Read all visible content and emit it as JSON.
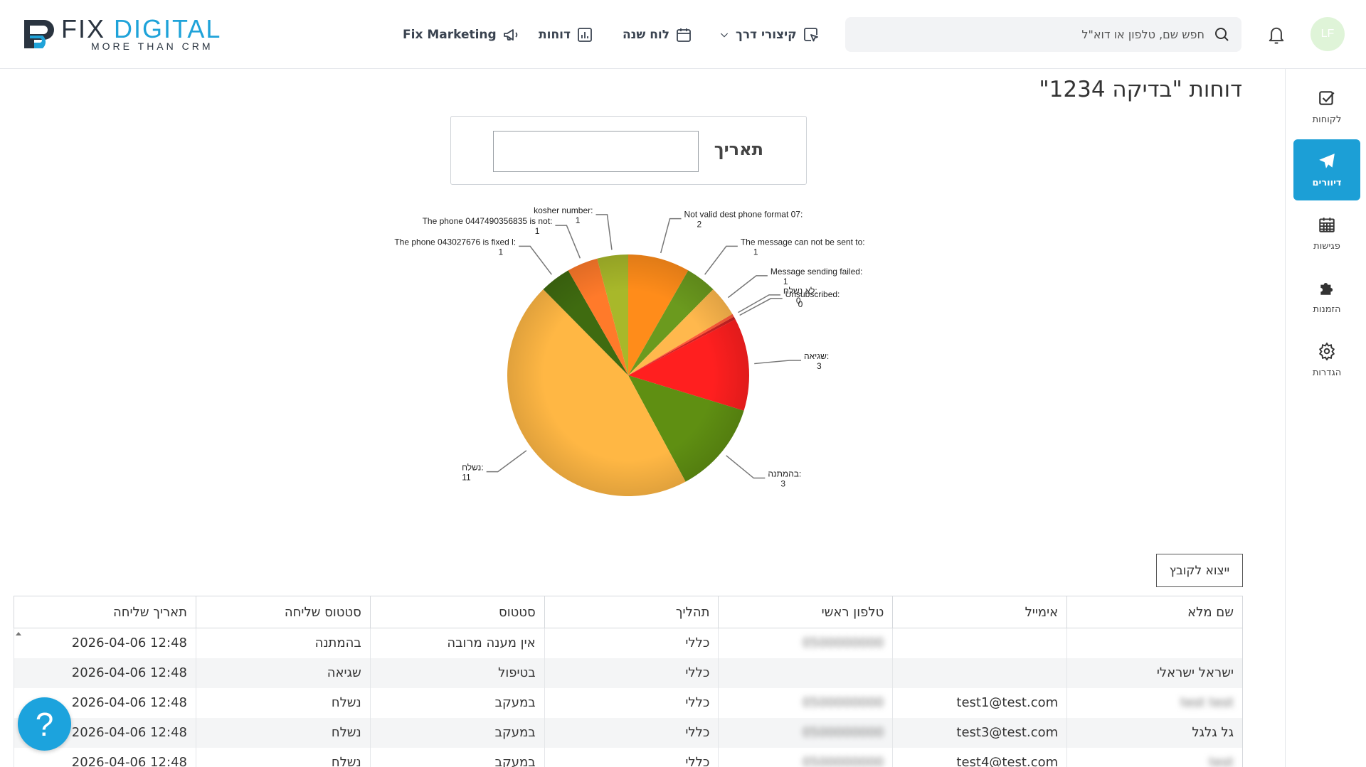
{
  "header": {
    "logo": {
      "word1": "FIX",
      "word2": "DIGITAL",
      "tagline": "MORE THAN CRM"
    },
    "nav": [
      {
        "label": "Fix Marketing",
        "icon": "megaphone-icon"
      },
      {
        "label": "דוחות",
        "icon": "bar-chart-icon"
      },
      {
        "label": "לוח שנה",
        "icon": "calendar-icon"
      },
      {
        "label": "קיצורי דרך",
        "icon": "cursor-click-icon"
      }
    ],
    "search": {
      "placeholder": "חפש שם, טלפון או דוא\"ל"
    },
    "avatar": "LF"
  },
  "sidebar": {
    "items": [
      {
        "label": "לקוחות",
        "icon": "check-square-icon",
        "active": false
      },
      {
        "label": "דיוורים",
        "icon": "paper-plane-icon",
        "active": true
      },
      {
        "label": "פגישות",
        "icon": "calendar-grid-icon",
        "active": false
      },
      {
        "label": "הזמנות",
        "icon": "puzzle-icon",
        "active": false
      },
      {
        "label": "הגדרות",
        "icon": "gear-icon",
        "active": false
      }
    ]
  },
  "page": {
    "title": "דוחות \"בדיקה 1234\"",
    "filter_label": "תאריך",
    "filter_value": "",
    "export_label": "ייצוא לקובץ"
  },
  "chart_data": {
    "type": "pie",
    "slices": [
      {
        "label": "Not valid dest phone format 07:",
        "value": 2,
        "color": "#ff8c1a"
      },
      {
        "label": "The message can not be sent to:",
        "value": 1,
        "color": "#6b9a1e"
      },
      {
        "label": "Message sending failed:",
        "value": 1,
        "color": "#ffb84d"
      },
      {
        "label": "לא נשלח:",
        "value": 0,
        "color": "#ff5a36"
      },
      {
        "label": "Unsubscribed:",
        "value": 0,
        "color": "#cc2222"
      },
      {
        "label": "שגיאה:",
        "value": 3,
        "color": "#ff1f1f"
      },
      {
        "label": "בהמתנה:",
        "value": 3,
        "color": "#5f8f12"
      },
      {
        "label": "נשלח:",
        "value": 11,
        "color": "#ffb744"
      },
      {
        "label": "The phone 043027676 is fixed l:",
        "value": 1,
        "color": "#3f6b10"
      },
      {
        "label": "The phone 0447490356835 is not:",
        "value": 1,
        "color": "#ff7a2a"
      },
      {
        "label": "kosher number:",
        "value": 1,
        "color": "#a8b82a"
      }
    ]
  },
  "table": {
    "columns": [
      "שם מלא",
      "אימייל",
      "טלפון ראשי",
      "תהליך",
      "סטטוס",
      "סטטוס שליחה",
      "תאריך שליחה"
    ],
    "rows": [
      [
        "",
        "",
        "0500000000",
        "כללי",
        "אין מענה מרובה",
        "בהמתנה",
        "2026-04-06 12:48"
      ],
      [
        "ישראל ישראלי",
        "",
        "",
        "כללי",
        "בטיפול",
        "שגיאה",
        "2026-04-06 12:48"
      ],
      [
        "test test",
        "test1@test.com",
        "0500000000",
        "כללי",
        "במעקב",
        "נשלח",
        "2026-04-06 12:48"
      ],
      [
        "גל גלגל",
        "test3@test.com",
        "0500000000",
        "כללי",
        "במעקב",
        "נשלח",
        "2026-04-06 12:48"
      ],
      [
        "test",
        "test4@test.com",
        "0500000000",
        "כללי",
        "במעקב",
        "נשלח",
        "2026-04-06 12:48"
      ]
    ],
    "blurred": [
      [
        false,
        false,
        true,
        false,
        false,
        false,
        false
      ],
      [
        false,
        false,
        false,
        false,
        false,
        false,
        false
      ],
      [
        true,
        false,
        true,
        false,
        false,
        false,
        false
      ],
      [
        false,
        false,
        true,
        false,
        false,
        false,
        false
      ],
      [
        true,
        false,
        true,
        false,
        false,
        false,
        false
      ]
    ]
  },
  "help_label": "?"
}
